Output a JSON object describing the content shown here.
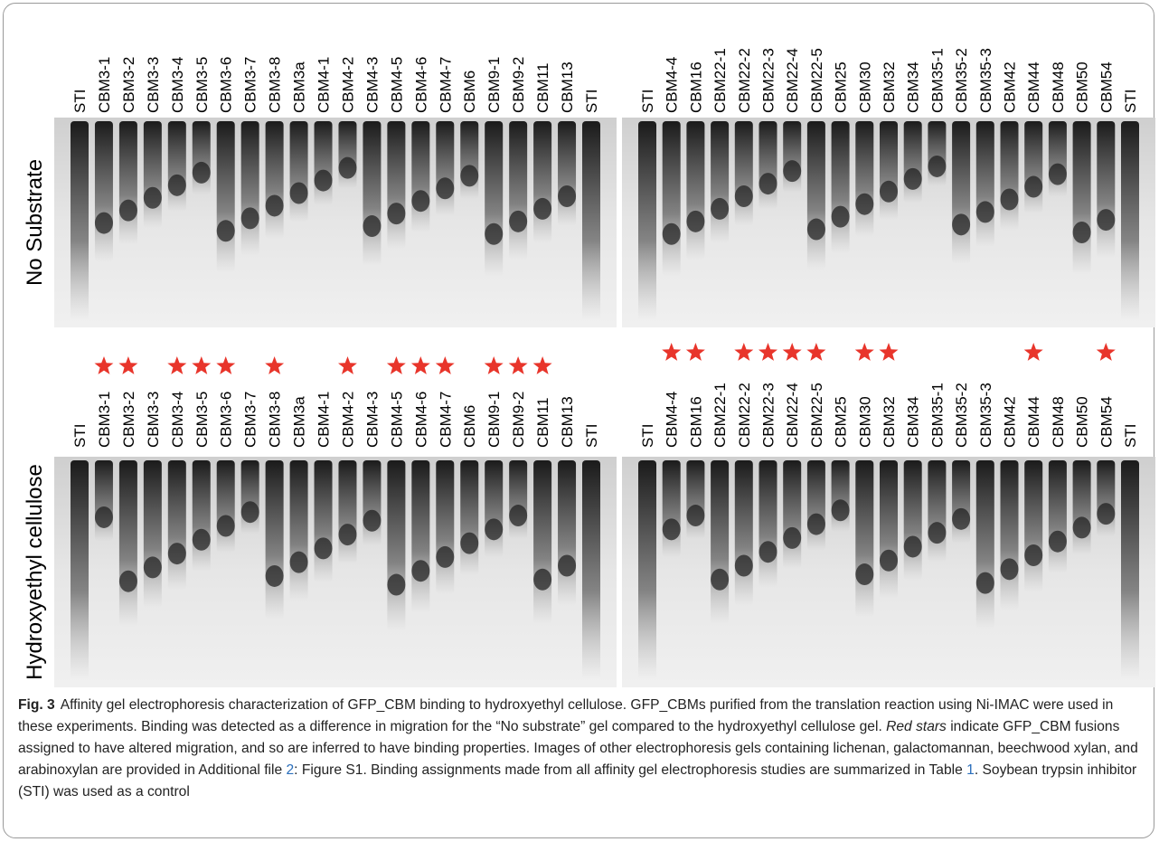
{
  "rows": [
    {
      "label": "No Substrate",
      "gels": [
        {
          "lanes": [
            "STI",
            "CBM3-1",
            "CBM3-2",
            "CBM3-3",
            "CBM3-4",
            "CBM3-5",
            "CBM3-6",
            "CBM3-7",
            "CBM3-8",
            "CBM3a",
            "CBM4-1",
            "CBM4-2",
            "CBM4-3",
            "CBM4-5",
            "CBM4-6",
            "CBM4-7",
            "CBM6",
            "CBM9-1",
            "CBM9-2",
            "CBM11",
            "CBM13",
            "STI"
          ]
        },
        {
          "lanes": [
            "STI",
            "CBM4-4",
            "CBM16",
            "CBM22-1",
            "CBM22-2",
            "CBM22-3",
            "CBM22-4",
            "CBM22-5",
            "CBM25",
            "CBM30",
            "CBM32",
            "CBM34",
            "CBM35-1",
            "CBM35-2",
            "CBM35-3",
            "CBM42",
            "CBM44",
            "CBM48",
            "CBM50",
            "CBM54",
            "STI"
          ]
        }
      ]
    },
    {
      "label": "Hydroxyethyl cellulose",
      "gels": [
        {
          "lanes": [
            "STI",
            "CBM3-1",
            "CBM3-2",
            "CBM3-3",
            "CBM3-4",
            "CBM3-5",
            "CBM3-6",
            "CBM3-7",
            "CBM3-8",
            "CBM3a",
            "CBM4-1",
            "CBM4-2",
            "CBM4-3",
            "CBM4-5",
            "CBM4-6",
            "CBM4-7",
            "CBM6",
            "CBM9-1",
            "CBM9-2",
            "CBM11",
            "CBM13",
            "STI"
          ],
          "stars": [
            false,
            true,
            true,
            false,
            true,
            true,
            true,
            false,
            true,
            false,
            false,
            true,
            false,
            true,
            true,
            true,
            false,
            true,
            true,
            true,
            false,
            false
          ]
        },
        {
          "lanes": [
            "STI",
            "CBM4-4",
            "CBM16",
            "CBM22-1",
            "CBM22-2",
            "CBM22-3",
            "CBM22-4",
            "CBM22-5",
            "CBM25",
            "CBM30",
            "CBM32",
            "CBM34",
            "CBM35-1",
            "CBM35-2",
            "CBM35-3",
            "CBM42",
            "CBM44",
            "CBM48",
            "CBM50",
            "CBM54",
            "STI"
          ],
          "stars": [
            false,
            true,
            true,
            false,
            true,
            true,
            true,
            true,
            false,
            true,
            true,
            false,
            false,
            false,
            false,
            false,
            true,
            false,
            false,
            true,
            false
          ]
        }
      ]
    }
  ],
  "caption": {
    "label": "Fig. 3",
    "parts": [
      {
        "text": "Affinity gel electrophoresis characterization of GFP_CBM binding to hydroxyethyl cellulose. GFP_CBMs purified from the translation reaction using Ni-IMAC were used in these experiments. Binding was detected as a difference in migration for the “No substrate” gel compared to the hydroxyethyl cellulose gel. "
      },
      {
        "text": "Red stars",
        "style": "italic"
      },
      {
        "text": " indicate GFP_CBM fusions assigned to have altered migration, and so are inferred to have binding properties. Images of other electrophoresis gels containing lichenan, galactomannan, beechwood xylan, and arabinoxylan are provided in Additional file "
      },
      {
        "text": "2",
        "style": "link"
      },
      {
        "text": ": Figure S1. Binding assignments made from all affinity gel electrophoresis studies are summarized in Table "
      },
      {
        "text": "1",
        "style": "link"
      },
      {
        "text": ". Soybean trypsin inhibitor (STI) was used as a control"
      }
    ]
  }
}
